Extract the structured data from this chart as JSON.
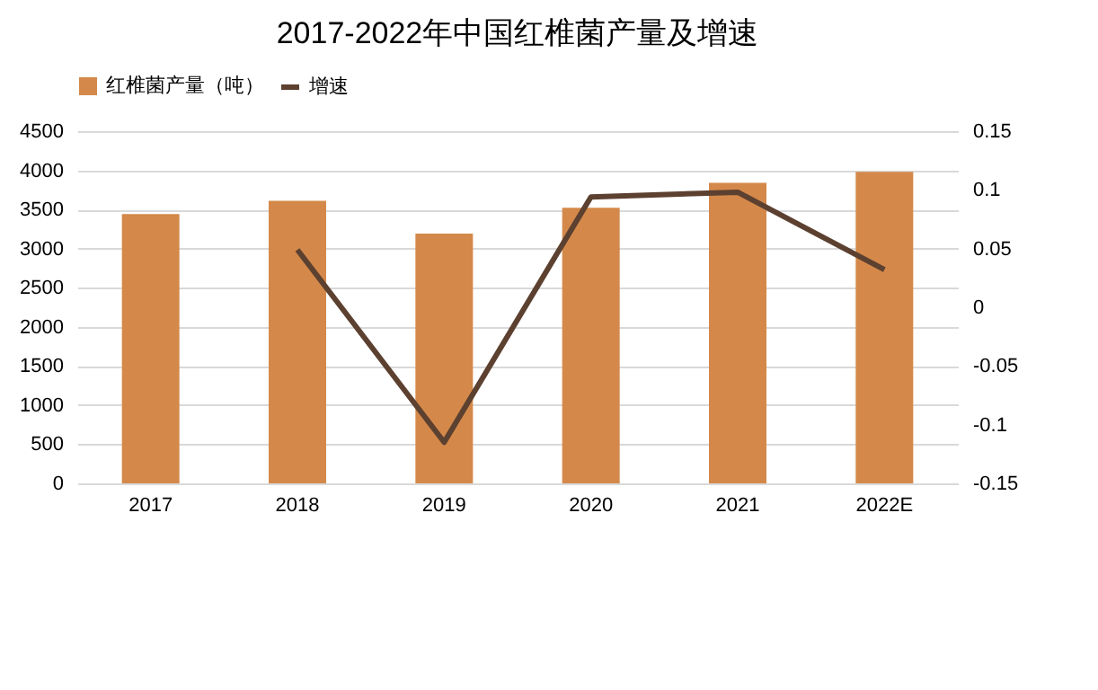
{
  "chart_data": {
    "type": "bar",
    "title": "2017-2022年中国红椎菌产量及增速",
    "categories": [
      "2017",
      "2018",
      "2019",
      "2020",
      "2021",
      "2022E"
    ],
    "series": [
      {
        "name": "红椎菌产量（吨）",
        "color": "#d4894a",
        "values": [
          3440,
          3610,
          3190,
          3520,
          3840,
          3980
        ]
      },
      {
        "name": "增速",
        "type": "line",
        "axis": "y2",
        "color": "#5c4030",
        "values": [
          null,
          0.049,
          -0.115,
          0.094,
          0.098,
          0.032
        ]
      }
    ],
    "ylim": [
      0,
      4500
    ],
    "yticks": [
      0,
      500,
      1000,
      1500,
      2000,
      2500,
      3000,
      3500,
      4000,
      4500
    ],
    "y2lim": [
      -0.15,
      0.15
    ],
    "y2ticks": [
      -0.15,
      -0.1,
      -0.05,
      0,
      0.05,
      0.1,
      0.15
    ],
    "grid": "y",
    "legend": "top",
    "marker": "none",
    "line_style": "solid"
  }
}
